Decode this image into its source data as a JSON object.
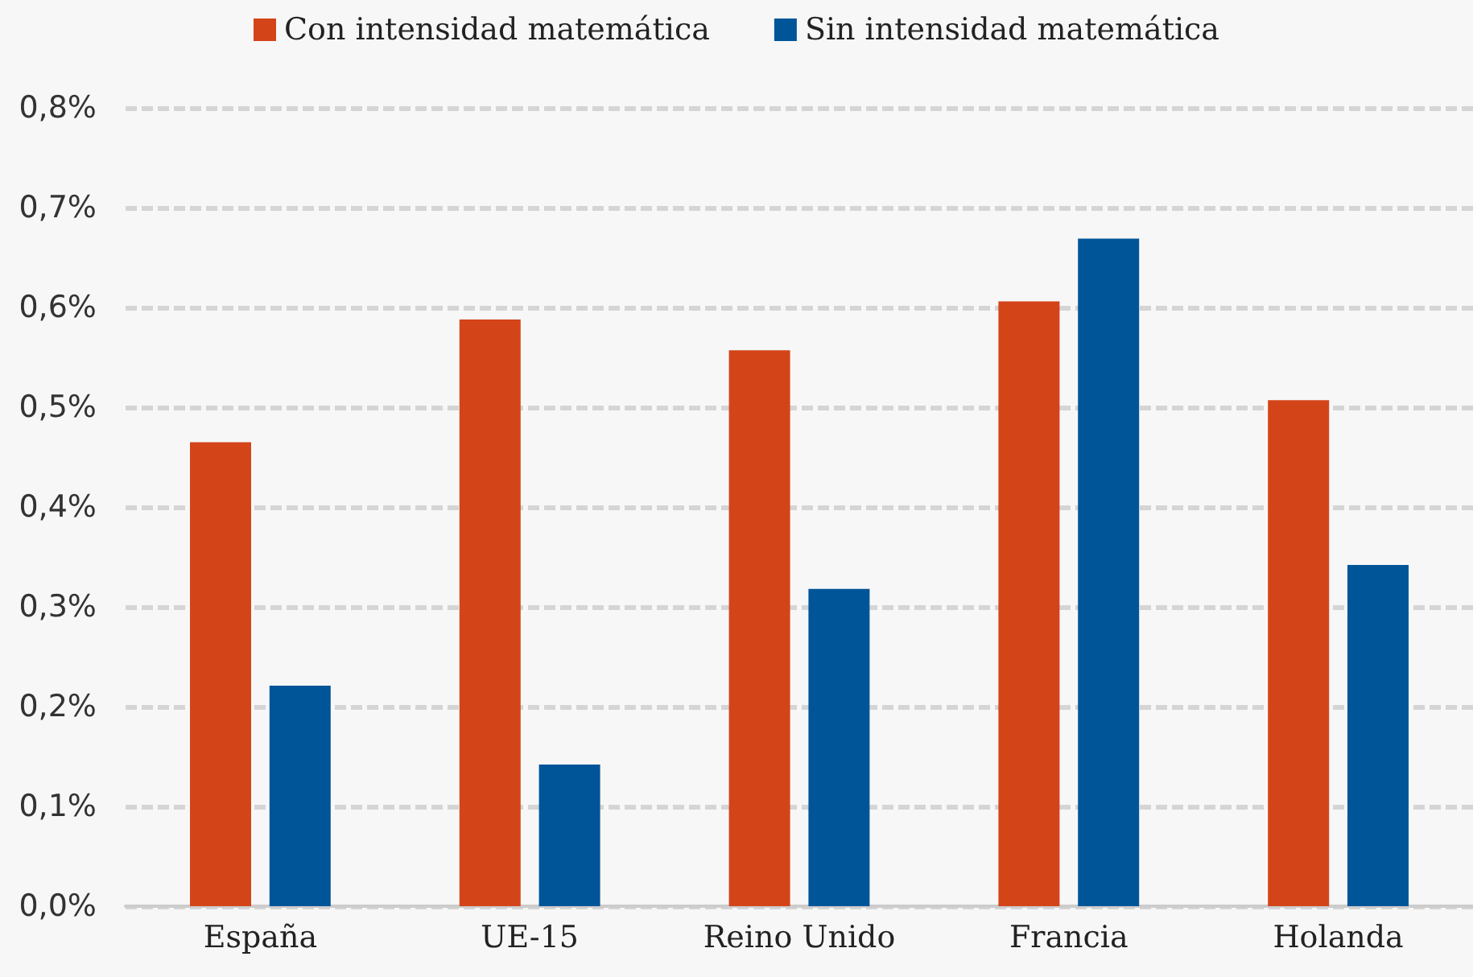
{
  "chart_data": {
    "type": "bar",
    "categories": [
      "España",
      "UE-15",
      "Reino Unido",
      "Francia",
      "Holanda"
    ],
    "series": [
      {
        "name": "Con intensidad matemática",
        "color": "#d44419",
        "values": [
          0.465,
          0.588,
          0.557,
          0.606,
          0.507
        ]
      },
      {
        "name": "Sin intensidad matemática",
        "color": "#005599",
        "values": [
          0.221,
          0.142,
          0.318,
          0.669,
          0.342
        ]
      }
    ],
    "ylim": [
      0,
      0.8
    ],
    "yticks": [
      {
        "value": 0,
        "label": "0,0%"
      },
      {
        "value": 0.1,
        "label": "0,1%"
      },
      {
        "value": 0.2,
        "label": "0,2%"
      },
      {
        "value": 0.3,
        "label": "0,3%"
      },
      {
        "value": 0.4,
        "label": "0,4%"
      },
      {
        "value": 0.5,
        "label": "0,5%"
      },
      {
        "value": 0.6,
        "label": "0,6%"
      },
      {
        "value": 0.7,
        "label": "0,7%"
      },
      {
        "value": 0.8,
        "label": "0,8%"
      }
    ],
    "grid": "y",
    "legend": "top"
  }
}
